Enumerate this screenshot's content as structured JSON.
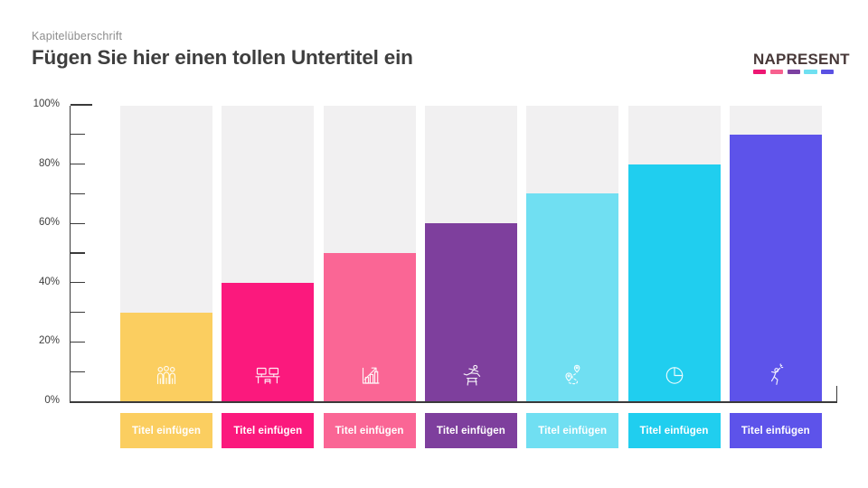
{
  "header": {
    "eyebrow": "Kapitelüberschrift",
    "title": "Fügen Sie hier einen tollen Untertitel ein"
  },
  "logo": {
    "text": "NAPRESENT",
    "dash_colors": [
      "#ED1773",
      "#F7618F",
      "#7C41A1",
      "#6FE0F1",
      "#5A51E3"
    ]
  },
  "chart_data": {
    "type": "bar",
    "title": "",
    "categories": [
      "Titel einfügen",
      "Titel einfügen",
      "Titel einfügen",
      "Titel einfügen",
      "Titel einfügen",
      "Titel einfügen",
      "Titel einfügen"
    ],
    "values": [
      30,
      40,
      50,
      60,
      70,
      80,
      90
    ],
    "unit": "%",
    "ylim": [
      0,
      100
    ],
    "ytick_labels": [
      "0%",
      "20%",
      "40%",
      "60%",
      "80%",
      "100%"
    ],
    "minor_tick_step": 10,
    "grid": false,
    "legend": false,
    "bar_colors": [
      "#FBCE60",
      "#FB197D",
      "#FA6695",
      "#7E3F9D",
      "#70DFF2",
      "#20CEEF",
      "#5D53EA"
    ],
    "track_color": "#F1F0F1",
    "axis_color": "#3A3A3A",
    "icons": [
      "people-group-icon",
      "workstations-icon",
      "bar-chart-growth-icon",
      "hurdler-icon",
      "route-pins-icon",
      "pie-chart-icon",
      "celebration-icon"
    ]
  }
}
